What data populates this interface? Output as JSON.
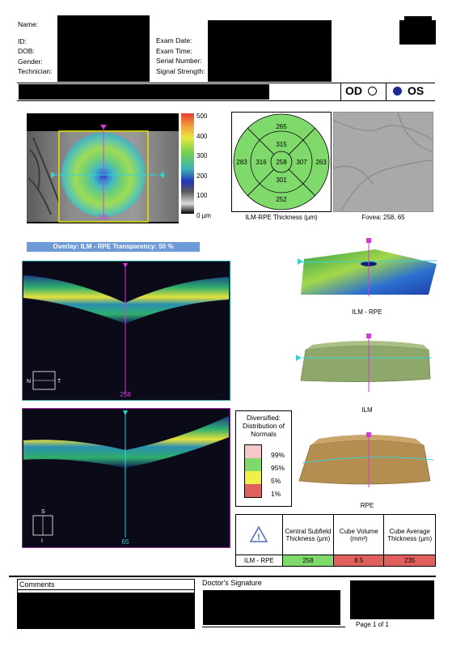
{
  "header": {
    "left_labels": [
      "Name:",
      "ID:",
      "DOB:",
      "Gender:",
      "Technician:"
    ],
    "right_labels": [
      "Exam Date:",
      "Exam Time:",
      "Serial Number:",
      "Signal Strength:"
    ],
    "od_label": "OD",
    "os_label": "OS",
    "selected_eye": "OS"
  },
  "colors": {
    "overlay_bar": "#6f9ad8",
    "cyan_line": "#35d3d3",
    "magenta_marker": "#d63ad6",
    "normal_green": "#7fd96b",
    "abnormal_red": "#e0605d",
    "yellow_frame": "#e7e400"
  },
  "color_scale": {
    "ticks": [
      "500",
      "400",
      "300",
      "200",
      "100",
      "0 µm"
    ]
  },
  "thickness_map": {
    "marker_value": "258",
    "overlay_caption": "Overlay: ILM - RPE  Transparency: 50 %"
  },
  "etdrs_grid": {
    "outer_superior": "265",
    "outer_nasal": "283",
    "outer_temporal": "263",
    "outer_inferior": "252",
    "inner_superior": "315",
    "inner_nasal": "316",
    "inner_temporal": "307",
    "inner_inferior": "301",
    "center": "258",
    "caption": "ILM-RPE Thickness (µm)"
  },
  "fovea": {
    "caption": "Fovea: 258, 65"
  },
  "bscan_horizontal": {
    "slice_label": "258",
    "orient_left": "N",
    "orient_right": "T"
  },
  "bscan_vertical": {
    "slice_label": "65",
    "orient_top": "S",
    "orient_bottom": "I"
  },
  "surfaces": {
    "ilm_rpe_caption": "ILM - RPE",
    "ilm_caption": "ILM",
    "rpe_caption": "RPE"
  },
  "legend": {
    "title": "Diversified: Distribution of Normals",
    "items": [
      {
        "label": "99%",
        "color": "#f7c6c9"
      },
      {
        "label": "95%",
        "color": "#7fd96b"
      },
      {
        "label": "5%",
        "color": "#f2ef4a"
      },
      {
        "label": "1%",
        "color": "#e0605d"
      }
    ]
  },
  "stats_table": {
    "headers": [
      "Central Subfield Thickness (µm)",
      "Cube Volume (mm³)",
      "Cube Average Thickness (µm)"
    ],
    "row_label": "ILM - RPE",
    "values": [
      "258",
      "8.5",
      "235"
    ]
  },
  "footer": {
    "comments_label": "Comments",
    "signature_label": "Doctor's Signature",
    "page_label": "Page 1 of 1"
  }
}
